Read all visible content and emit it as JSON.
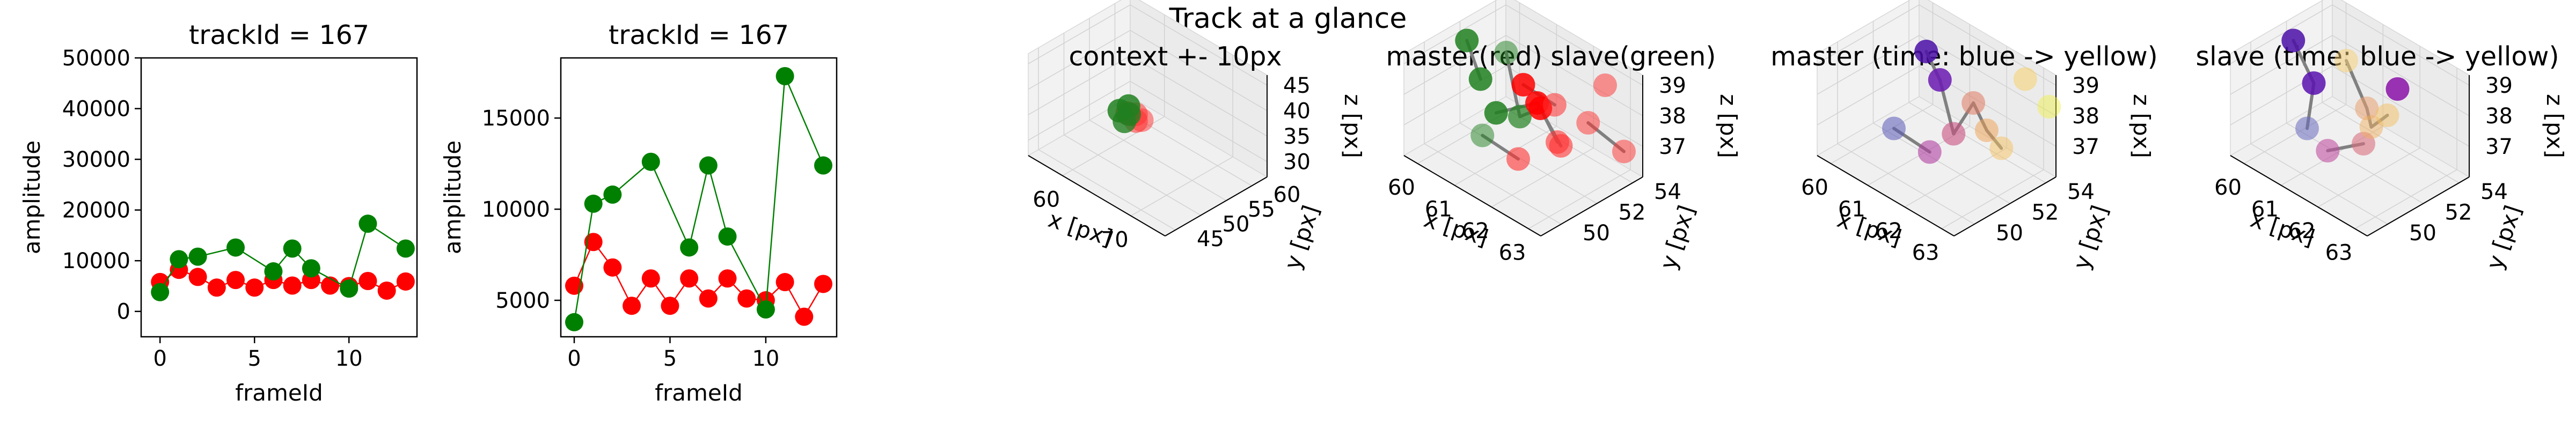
{
  "figure": {
    "suptitle": "Track at a glance"
  },
  "colors": {
    "master": "#ff0000",
    "slave": "#008000",
    "connector": "#808080",
    "frame": "#000000"
  },
  "chart_data": [
    {
      "type": "line",
      "title": "trackId = 167",
      "xlabel": "frameId",
      "ylabel": "amplitude",
      "xlim": [
        -1,
        13.6
      ],
      "ylim": [
        -5000,
        50000
      ],
      "xticks": [
        "0",
        "5",
        "10"
      ],
      "yticks": [
        "0",
        "10000",
        "20000",
        "30000",
        "40000",
        "50000"
      ],
      "series": [
        {
          "color": "red",
          "x": [
            0,
            1,
            2,
            3,
            4,
            5,
            6,
            7,
            8,
            9,
            10,
            11,
            12,
            13
          ],
          "y": [
            5800,
            8200,
            6800,
            4700,
            6200,
            4700,
            6200,
            5100,
            6200,
            5100,
            5000,
            6000,
            4100,
            5900
          ]
        },
        {
          "color": "green",
          "x": [
            0,
            1,
            2,
            4,
            6,
            7,
            8,
            10,
            11,
            13
          ],
          "y": [
            3800,
            10300,
            10800,
            12600,
            7900,
            12400,
            8500,
            4500,
            17300,
            12400
          ]
        }
      ]
    },
    {
      "type": "line",
      "title": "trackId = 167",
      "xlabel": "frameId",
      "ylabel": "amplitude",
      "xlim": [
        -0.7,
        13.7
      ],
      "ylim": [
        3000,
        18300
      ],
      "xticks": [
        "0",
        "5",
        "10"
      ],
      "yticks": [
        "5000",
        "10000",
        "15000"
      ],
      "series": [
        {
          "color": "red",
          "x": [
            0,
            1,
            2,
            3,
            4,
            5,
            6,
            7,
            8,
            9,
            10,
            11,
            12,
            13
          ],
          "y": [
            5800,
            8200,
            6800,
            4700,
            6200,
            4700,
            6200,
            5100,
            6200,
            5100,
            5000,
            6000,
            4100,
            5900
          ]
        },
        {
          "color": "green",
          "x": [
            0,
            1,
            2,
            4,
            6,
            7,
            8,
            10,
            11,
            13
          ],
          "y": [
            3800,
            10300,
            10800,
            12600,
            7900,
            12400,
            8500,
            4500,
            17300,
            12400
          ]
        }
      ]
    },
    {
      "type": "scatter",
      "title": "context +- 10px",
      "xlabel": "x [px]",
      "ylabel": "y [px]",
      "zlabel": "z [px]",
      "xticks": [
        "60",
        "70"
      ],
      "yticks": [
        "45",
        "50",
        "55",
        "60"
      ],
      "zticks": [
        "30",
        "35",
        "40",
        "45"
      ]
    },
    {
      "type": "scatter",
      "title": "master(red) slave(green)",
      "xlabel": "x [px]",
      "ylabel": "y [px]",
      "zlabel": "z [px]",
      "xticks": [
        "60",
        "61",
        "62",
        "63"
      ],
      "yticks": [
        "50",
        "52",
        "54"
      ],
      "zticks": [
        "37",
        "38",
        "39"
      ]
    },
    {
      "type": "scatter",
      "title": "master (time: blue -> yellow)",
      "xlabel": "x [px]",
      "ylabel": "y [px]",
      "zlabel": "z [px]",
      "xticks": [
        "60",
        "61",
        "62",
        "63"
      ],
      "yticks": [
        "50",
        "52",
        "54"
      ],
      "zticks": [
        "37",
        "38",
        "39"
      ]
    },
    {
      "type": "scatter",
      "title": "slave (time: blue -> yellow)",
      "xlabel": "x [px]",
      "ylabel": "y [px]",
      "zlabel": "z [px]",
      "xticks": [
        "60",
        "61",
        "62",
        "63"
      ],
      "yticks": [
        "50",
        "52",
        "54"
      ],
      "zticks": [
        "37",
        "38",
        "39"
      ]
    }
  ]
}
